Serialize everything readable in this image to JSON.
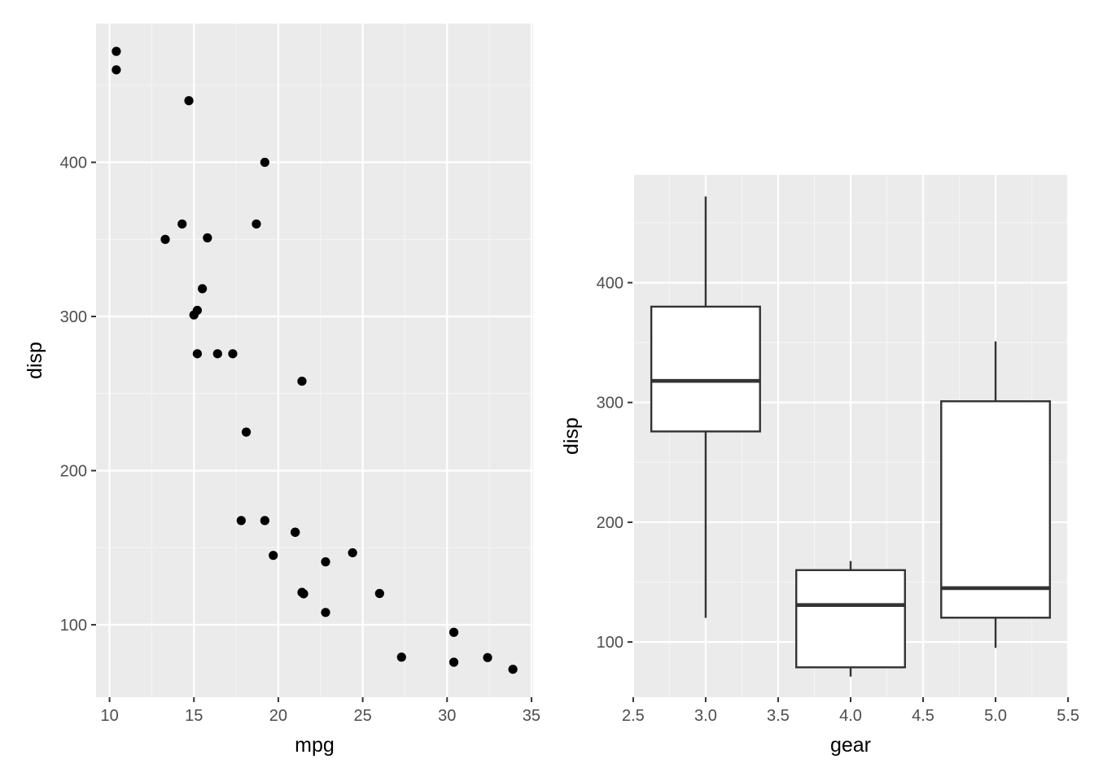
{
  "chart_data": [
    {
      "type": "scatter",
      "xlabel": "mpg",
      "ylabel": "disp",
      "xlim": [
        9.2,
        35.1
      ],
      "ylim": [
        53,
        490
      ],
      "x_ticks": [
        10,
        15,
        20,
        25,
        30,
        35
      ],
      "x_tick_labels": [
        "10",
        "15",
        "20",
        "25",
        "30",
        "35"
      ],
      "y_ticks": [
        100,
        200,
        300,
        400
      ],
      "y_tick_labels": [
        "100",
        "200",
        "300",
        "400"
      ],
      "grid": true,
      "points": [
        {
          "x": 21.0,
          "y": 160
        },
        {
          "x": 21.0,
          "y": 160
        },
        {
          "x": 22.8,
          "y": 108
        },
        {
          "x": 21.4,
          "y": 258
        },
        {
          "x": 18.7,
          "y": 360
        },
        {
          "x": 18.1,
          "y": 225
        },
        {
          "x": 14.3,
          "y": 360
        },
        {
          "x": 24.4,
          "y": 146.7
        },
        {
          "x": 22.8,
          "y": 140.8
        },
        {
          "x": 19.2,
          "y": 167.6
        },
        {
          "x": 17.8,
          "y": 167.6
        },
        {
          "x": 16.4,
          "y": 275.8
        },
        {
          "x": 17.3,
          "y": 275.8
        },
        {
          "x": 15.2,
          "y": 275.8
        },
        {
          "x": 10.4,
          "y": 472
        },
        {
          "x": 10.4,
          "y": 460
        },
        {
          "x": 14.7,
          "y": 440
        },
        {
          "x": 32.4,
          "y": 78.7
        },
        {
          "x": 30.4,
          "y": 75.7
        },
        {
          "x": 33.9,
          "y": 71.1
        },
        {
          "x": 21.5,
          "y": 120.1
        },
        {
          "x": 15.5,
          "y": 318
        },
        {
          "x": 15.2,
          "y": 304
        },
        {
          "x": 13.3,
          "y": 350
        },
        {
          "x": 19.2,
          "y": 400
        },
        {
          "x": 27.3,
          "y": 79
        },
        {
          "x": 26.0,
          "y": 120.3
        },
        {
          "x": 30.4,
          "y": 95.1
        },
        {
          "x": 15.8,
          "y": 351
        },
        {
          "x": 19.7,
          "y": 145
        },
        {
          "x": 15.0,
          "y": 301
        },
        {
          "x": 21.4,
          "y": 121
        }
      ]
    },
    {
      "type": "box",
      "xlabel": "gear",
      "ylabel": "disp",
      "xlim": [
        2.495,
        5.505
      ],
      "ylim": [
        53.9,
        490
      ],
      "x_ticks": [
        2.5,
        3.0,
        3.5,
        4.0,
        4.5,
        5.0,
        5.5
      ],
      "x_tick_labels": [
        "2.5",
        "3.0",
        "3.5",
        "4.0",
        "4.5",
        "5.0",
        "5.5"
      ],
      "y_ticks": [
        100,
        200,
        300,
        400
      ],
      "y_tick_labels": [
        "100",
        "200",
        "300",
        "400"
      ],
      "grid": true,
      "boxes": [
        {
          "x": 3,
          "lower_whisker": 120.1,
          "q1": 275.8,
          "median": 318,
          "q3": 380,
          "upper_whisker": 472
        },
        {
          "x": 4,
          "lower_whisker": 71.1,
          "q1": 78.85,
          "median": 130.9,
          "q3": 160,
          "upper_whisker": 167.6
        },
        {
          "x": 5,
          "lower_whisker": 95.1,
          "q1": 120.3,
          "median": 145,
          "q3": 301,
          "upper_whisker": 351
        }
      ]
    }
  ]
}
